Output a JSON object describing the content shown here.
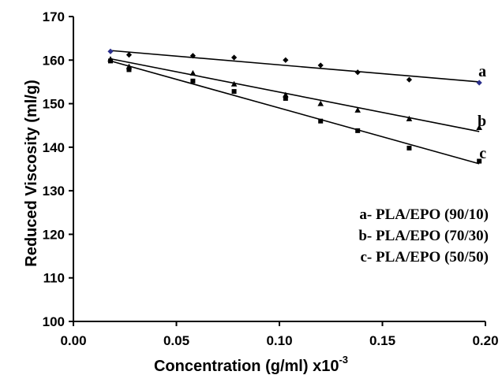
{
  "chart_data": {
    "type": "scatter",
    "xlabel": "Concentration (g/ml) x10",
    "xlabel_exponent": "-3",
    "ylabel": "Reduced Viscosity (ml/g)",
    "xlim": [
      0.0,
      0.2
    ],
    "ylim": [
      100,
      170
    ],
    "x_ticks": [
      "0.00",
      "0.05",
      "0.10",
      "0.15",
      "0.20"
    ],
    "y_ticks": [
      "100",
      "110",
      "120",
      "130",
      "140",
      "150",
      "160",
      "170"
    ],
    "grid": false,
    "legend_position": "bottom-right",
    "legend": [
      "a- PLA/EPO (90/10)",
      "b- PLA/EPO (70/30)",
      "c- PLA/EPO (50/50)"
    ],
    "series": [
      {
        "label": "a",
        "marker": "diamond",
        "x": [
          0.018,
          0.027,
          0.058,
          0.078,
          0.103,
          0.12,
          0.138,
          0.163,
          0.197
        ],
        "y": [
          162.0,
          161.2,
          161.0,
          160.6,
          160.0,
          158.8,
          157.2,
          155.5,
          154.8
        ],
        "fit": [
          [
            0.018,
            162.2
          ],
          [
            0.197,
            155.0
          ]
        ]
      },
      {
        "label": "b",
        "marker": "triangle",
        "x": [
          0.018,
          0.027,
          0.058,
          0.078,
          0.103,
          0.12,
          0.138,
          0.163,
          0.197
        ],
        "y": [
          160.2,
          158.5,
          157.0,
          154.5,
          152.0,
          150.0,
          148.5,
          146.5,
          144.5
        ],
        "fit": [
          [
            0.018,
            160.3
          ],
          [
            0.197,
            143.6
          ]
        ]
      },
      {
        "label": "c",
        "marker": "square",
        "x": [
          0.018,
          0.027,
          0.058,
          0.078,
          0.103,
          0.12,
          0.138,
          0.163,
          0.197
        ],
        "y": [
          159.8,
          157.8,
          155.2,
          152.8,
          151.2,
          146.0,
          143.8,
          139.8,
          136.8
        ],
        "fit": [
          [
            0.018,
            159.8
          ],
          [
            0.197,
            136.2
          ]
        ]
      }
    ]
  }
}
